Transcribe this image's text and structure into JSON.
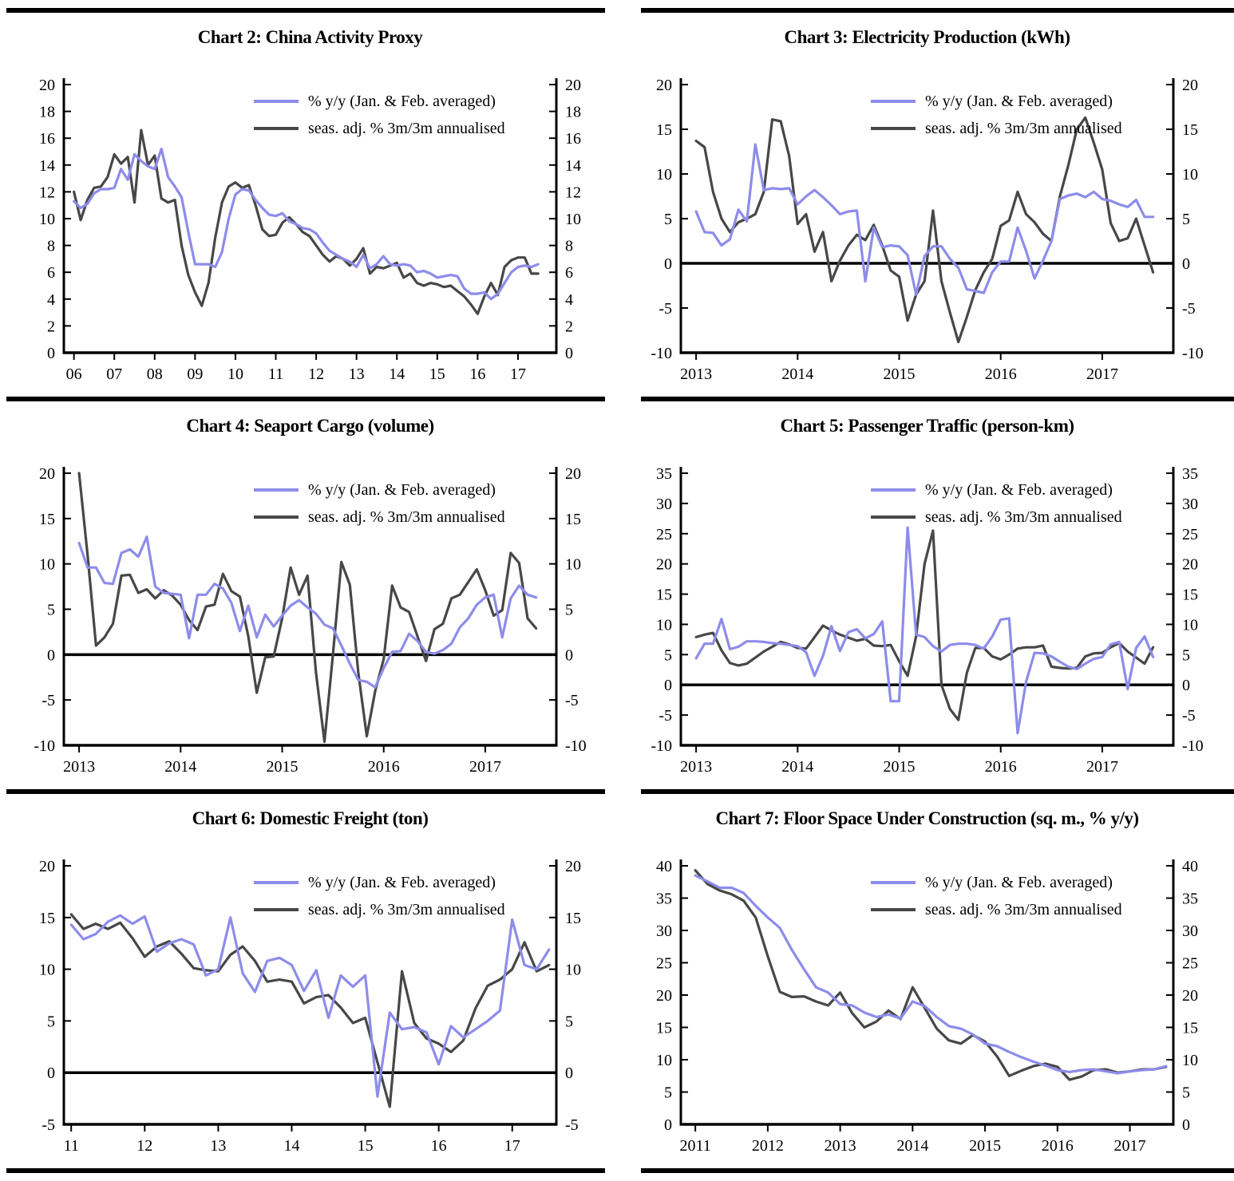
{
  "page": {
    "background": "#ffffff",
    "divider_color": "#000000"
  },
  "colors": {
    "yoy": "#8d8cea",
    "sa": "#474747",
    "axis": "#000000"
  },
  "legend": {
    "yoy": "% y/y (Jan. & Feb. averaged)",
    "sa": "seas. adj. % 3m/3m annualised"
  },
  "chart_data": [
    {
      "id": "chart-2",
      "type": "line",
      "title": "Chart 2: China Activity Proxy",
      "x_domain": [
        2005.75,
        2017.95
      ],
      "x_tick_years": [
        2006,
        2007,
        2008,
        2009,
        2010,
        2011,
        2012,
        2013,
        2014,
        2015,
        2016,
        2017
      ],
      "x_tick_labels": [
        "06",
        "07",
        "08",
        "09",
        "10",
        "11",
        "12",
        "13",
        "14",
        "15",
        "16",
        "17"
      ],
      "y_min": 0,
      "y_max": 20,
      "y_step": 2,
      "zero_line": false,
      "x_start": 2006.0,
      "x_step": 0.1666667,
      "series": [
        {
          "key": "yoy",
          "name": "% y/y (Jan. & Feb. averaged)",
          "values": [
            11.3,
            10.8,
            11.1,
            11.9,
            12.2,
            12.2,
            12.3,
            13.7,
            12.9,
            14.8,
            14.3,
            13.9,
            13.7,
            15.2,
            13.1,
            12.4,
            11.6,
            9.0,
            6.6,
            6.6,
            6.6,
            6.4,
            7.5,
            10.0,
            11.8,
            12.2,
            12.1,
            11.4,
            10.8,
            10.3,
            10.2,
            10.4,
            9.8,
            9.6,
            9.3,
            9.2,
            8.9,
            8.2,
            7.6,
            7.3,
            7.0,
            6.8,
            6.4,
            7.3,
            6.3,
            6.6,
            7.2,
            6.6,
            6.5,
            6.6,
            6.5,
            6.0,
            6.1,
            5.9,
            5.6,
            5.7,
            5.8,
            5.7,
            4.8,
            4.4,
            4.4,
            4.5,
            4.0,
            4.4,
            5.2,
            6.0,
            6.4,
            6.5,
            6.4,
            6.6
          ]
        },
        {
          "key": "sa",
          "name": "seas. adj. % 3m/3m annualised",
          "values": [
            12.0,
            9.9,
            11.4,
            12.3,
            12.4,
            13.1,
            14.8,
            14.1,
            14.6,
            11.2,
            16.6,
            14.0,
            14.7,
            11.5,
            11.2,
            11.4,
            8.0,
            5.8,
            4.5,
            3.5,
            5.2,
            8.6,
            11.2,
            12.4,
            12.7,
            12.3,
            12.5,
            11.0,
            9.2,
            8.7,
            8.8,
            9.7,
            10.1,
            9.6,
            9.0,
            8.7,
            8.0,
            7.3,
            6.8,
            7.2,
            7.0,
            6.5,
            7.0,
            7.8,
            5.9,
            6.4,
            6.3,
            6.5,
            6.7,
            5.6,
            5.9,
            5.2,
            5.0,
            5.2,
            5.1,
            4.9,
            5.0,
            4.6,
            4.2,
            3.6,
            2.9,
            4.2,
            5.2,
            4.3,
            6.4,
            6.9,
            7.1,
            7.1,
            5.9,
            5.9
          ]
        }
      ]
    },
    {
      "id": "chart-3",
      "type": "line",
      "title": "Chart 3: Electricity Production (kWh)",
      "x_domain": [
        2012.85,
        2017.7
      ],
      "x_tick_years": [
        2013,
        2014,
        2015,
        2016,
        2017
      ],
      "x_tick_labels": [
        "2013",
        "2014",
        "2015",
        "2016",
        "2017"
      ],
      "y_min": -10,
      "y_max": 20,
      "y_step": 5,
      "zero_line": true,
      "x_start": 2013.0,
      "x_step": 0.0833333,
      "series": [
        {
          "key": "yoy",
          "name": "% y/y (Jan. & Feb. averaged)",
          "values": [
            5.8,
            3.5,
            3.4,
            2.0,
            2.7,
            6.0,
            4.7,
            13.3,
            8.2,
            8.4,
            8.3,
            8.4,
            6.6,
            7.5,
            8.2,
            7.4,
            6.5,
            5.5,
            5.8,
            5.9,
            -2.0,
            4.0,
            1.8,
            2.0,
            1.9,
            0.9,
            -3.5,
            0.8,
            1.9,
            1.9,
            0.5,
            -0.5,
            -2.9,
            -3.1,
            -3.3,
            -1.0,
            0.2,
            0.2,
            4.0,
            1.4,
            -1.7,
            0.3,
            2.5,
            7.2,
            7.6,
            7.8,
            7.4,
            8.0,
            7.2,
            7.0,
            6.6,
            6.3,
            7.1,
            5.2,
            5.2
          ]
        },
        {
          "key": "sa",
          "name": "seas. adj. % 3m/3m annualised",
          "values": [
            13.7,
            13.0,
            8.0,
            5.0,
            3.5,
            4.6,
            5.0,
            5.5,
            8.0,
            16.1,
            15.9,
            12.0,
            4.4,
            5.5,
            1.3,
            3.5,
            -2.0,
            0.3,
            2.0,
            3.2,
            2.6,
            4.3,
            2.0,
            -0.8,
            -1.5,
            -6.4,
            -3.5,
            -2.0,
            5.9,
            -2.0,
            -5.5,
            -8.8,
            -6.0,
            -3.0,
            -1.0,
            0.5,
            4.2,
            4.8,
            8.0,
            5.5,
            4.6,
            3.3,
            2.5,
            7.5,
            11.0,
            15.0,
            16.3,
            13.5,
            10.5,
            4.5,
            2.5,
            2.8,
            5.0,
            2.0,
            -1.0
          ]
        }
      ]
    },
    {
      "id": "chart-4",
      "type": "line",
      "title": "Chart 4: Seaport Cargo (volume)",
      "x_domain": [
        2012.85,
        2017.7
      ],
      "x_tick_years": [
        2013,
        2014,
        2015,
        2016,
        2017
      ],
      "x_tick_labels": [
        "2013",
        "2014",
        "2015",
        "2016",
        "2017"
      ],
      "y_min": -10,
      "y_max": 20,
      "y_step": 5,
      "zero_line": true,
      "x_start": 2013.0,
      "x_step": 0.0833333,
      "series": [
        {
          "key": "yoy",
          "name": "% y/y (Jan. & Feb. averaged)",
          "values": [
            12.3,
            9.6,
            9.6,
            7.9,
            7.8,
            11.2,
            11.6,
            10.8,
            13.0,
            7.5,
            6.8,
            6.7,
            6.6,
            1.8,
            6.6,
            6.6,
            7.8,
            7.3,
            5.7,
            2.6,
            5.4,
            1.9,
            4.4,
            3.1,
            4.3,
            5.4,
            6.0,
            5.2,
            4.5,
            3.3,
            2.9,
            1.0,
            -1.0,
            -2.8,
            -3.0,
            -3.6,
            -1.5,
            0.3,
            0.4,
            2.3,
            1.5,
            0.3,
            0.1,
            0.5,
            1.2,
            3.0,
            4.0,
            5.5,
            6.3,
            6.6,
            1.9,
            6.2,
            7.6,
            6.6,
            6.3
          ]
        },
        {
          "key": "sa",
          "name": "seas. adj. % 3m/3m annualised",
          "values": [
            20.0,
            11.0,
            1.0,
            1.9,
            3.4,
            8.7,
            8.8,
            6.8,
            7.2,
            6.2,
            7.1,
            6.5,
            5.5,
            3.8,
            2.7,
            5.3,
            5.5,
            8.9,
            7.0,
            6.4,
            2.0,
            -4.2,
            -0.3,
            -0.2,
            4.0,
            9.6,
            6.6,
            8.7,
            -2.0,
            -9.6,
            0.0,
            10.2,
            7.7,
            -2.0,
            -9.0,
            -4.0,
            -0.5,
            7.6,
            5.2,
            4.7,
            2.0,
            -0.7,
            2.8,
            3.4,
            6.2,
            6.6,
            8.0,
            9.4,
            7.1,
            4.3,
            4.9,
            11.2,
            10.1,
            4.0,
            2.9
          ]
        }
      ]
    },
    {
      "id": "chart-5",
      "type": "line",
      "title": "Chart 5: Passenger Traffic (person-km)",
      "x_domain": [
        2012.85,
        2017.7
      ],
      "x_tick_years": [
        2013,
        2014,
        2015,
        2016,
        2017
      ],
      "x_tick_labels": [
        "2013",
        "2014",
        "2015",
        "2016",
        "2017"
      ],
      "y_min": -10,
      "y_max": 35,
      "y_step": 5,
      "zero_line": true,
      "x_start": 2013.0,
      "x_step": 0.0833333,
      "series": [
        {
          "key": "yoy",
          "name": "% y/y (Jan. & Feb. averaged)",
          "values": [
            4.4,
            6.8,
            6.8,
            10.9,
            5.9,
            6.3,
            7.2,
            7.2,
            7.1,
            6.9,
            6.8,
            6.6,
            6.4,
            5.4,
            1.5,
            4.8,
            9.7,
            5.6,
            8.7,
            9.2,
            7.7,
            8.4,
            10.5,
            -2.7,
            -2.7,
            26.0,
            8.3,
            7.9,
            6.4,
            5.5,
            6.6,
            6.8,
            6.8,
            6.6,
            6.0,
            8.0,
            10.8,
            11.0,
            -8.0,
            0.5,
            5.3,
            5.2,
            4.7,
            3.8,
            3.0,
            2.6,
            3.5,
            4.3,
            4.6,
            6.7,
            7.1,
            -0.7,
            6.1,
            8.0,
            4.6
          ]
        },
        {
          "key": "sa",
          "name": "seas. adj. % 3m/3m annualised",
          "values": [
            7.9,
            8.3,
            8.6,
            5.7,
            3.6,
            3.2,
            3.5,
            4.5,
            5.5,
            6.3,
            7.1,
            6.7,
            6.1,
            6.0,
            7.9,
            9.8,
            9.0,
            8.3,
            7.8,
            7.3,
            7.6,
            6.5,
            6.4,
            6.6,
            3.9,
            1.5,
            8.0,
            20.0,
            25.5,
            0.0,
            -4.0,
            -5.8,
            2.0,
            6.1,
            6.1,
            4.7,
            4.2,
            5.0,
            6.0,
            6.2,
            6.2,
            6.5,
            3.0,
            2.8,
            2.7,
            2.8,
            4.7,
            5.2,
            5.3,
            6.2,
            6.9,
            5.5,
            4.5,
            3.5,
            6.2
          ]
        }
      ]
    },
    {
      "id": "chart-6",
      "type": "line",
      "title": "Chart 6: Domestic Freight (ton)",
      "x_domain": [
        2010.9,
        2017.6
      ],
      "x_tick_years": [
        2011,
        2012,
        2013,
        2014,
        2015,
        2016,
        2017
      ],
      "x_tick_labels": [
        "11",
        "12",
        "13",
        "14",
        "15",
        "16",
        "17"
      ],
      "y_min": -5,
      "y_max": 20,
      "y_step": 5,
      "zero_line": true,
      "x_start": 2011.0,
      "x_step": 0.1666667,
      "series": [
        {
          "key": "yoy",
          "name": "% y/y (Jan. & Feb. averaged)",
          "values": [
            14.3,
            12.9,
            13.4,
            14.6,
            15.2,
            14.4,
            15.1,
            11.7,
            12.5,
            12.9,
            12.4,
            9.4,
            10.0,
            15.0,
            9.6,
            7.8,
            10.8,
            11.1,
            10.4,
            7.9,
            9.9,
            5.3,
            9.4,
            8.3,
            9.4,
            -2.3,
            5.8,
            4.2,
            4.4,
            3.9,
            0.8,
            4.5,
            3.4,
            4.2,
            5.0,
            6.0,
            14.8,
            10.4,
            10.0,
            11.9
          ]
        },
        {
          "key": "sa",
          "name": "seas. adj. % 3m/3m annualised",
          "values": [
            15.3,
            13.9,
            14.4,
            13.9,
            14.5,
            13.0,
            11.2,
            12.2,
            12.7,
            11.5,
            10.1,
            9.9,
            9.8,
            11.4,
            12.2,
            10.8,
            8.8,
            9.0,
            8.8,
            6.7,
            7.3,
            7.5,
            6.3,
            4.8,
            5.3,
            1.0,
            -3.3,
            9.8,
            4.8,
            3.3,
            2.8,
            2.0,
            3.1,
            6.2,
            8.4,
            9.0,
            10.0,
            12.6,
            9.8,
            10.4
          ]
        }
      ]
    },
    {
      "id": "chart-7",
      "type": "line",
      "title": "Chart 7: Floor Space Under Construction (sq. m., % y/y)",
      "x_domain": [
        2010.8,
        2017.6
      ],
      "x_tick_years": [
        2011,
        2012,
        2013,
        2014,
        2015,
        2016,
        2017
      ],
      "x_tick_labels": [
        "2011",
        "2012",
        "2013",
        "2014",
        "2015",
        "2016",
        "2017"
      ],
      "y_min": 0,
      "y_max": 40,
      "y_step": 5,
      "zero_line": false,
      "x_start": 2011.0,
      "x_step": 0.1666667,
      "series": [
        {
          "key": "yoy",
          "name": "% y/y (Jan. & Feb. averaged)",
          "values": [
            38.5,
            37.6,
            36.6,
            36.6,
            35.8,
            33.8,
            32.0,
            30.4,
            27.0,
            24.0,
            21.2,
            20.4,
            18.6,
            18.4,
            17.3,
            16.6,
            17.0,
            16.4,
            19.0,
            18.3,
            16.6,
            15.2,
            14.8,
            13.9,
            12.5,
            12.1,
            11.2,
            10.4,
            9.7,
            9.1,
            8.4,
            8.1,
            8.4,
            8.5,
            8.2,
            7.9,
            8.2,
            8.4,
            8.5,
            9.0
          ]
        },
        {
          "key": "sa",
          "name": "seas. adj. % 3m/3m annualised",
          "values": [
            39.3,
            37.2,
            36.2,
            35.6,
            34.6,
            32.0,
            26.0,
            20.5,
            19.7,
            19.8,
            19.0,
            18.4,
            20.4,
            17.2,
            15.0,
            15.9,
            17.6,
            16.3,
            21.2,
            18.0,
            14.8,
            13.0,
            12.5,
            13.8,
            12.8,
            10.5,
            7.5,
            8.3,
            9.0,
            9.4,
            8.9,
            6.9,
            7.4,
            8.4,
            8.5,
            8.0,
            8.2,
            8.5,
            8.5,
            8.9
          ]
        }
      ]
    }
  ]
}
